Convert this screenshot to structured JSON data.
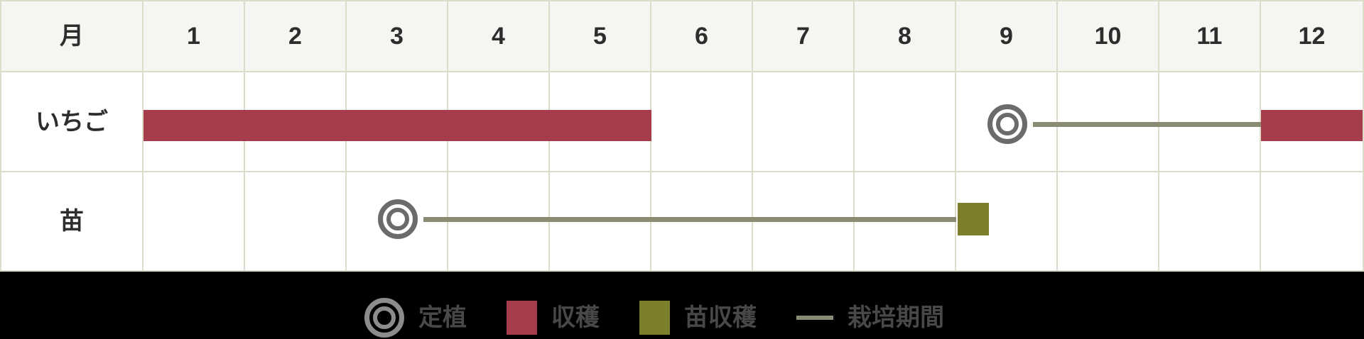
{
  "colors": {
    "harvest": "#a63c4c",
    "seedling_harvest": "#7c7e29",
    "period_line": "#8b8b73",
    "mark_circle": "#6b6b6b",
    "legend_circle": "#8c8c8c",
    "grid_line": "#dcdcca",
    "header_bg": "#f5f5f2",
    "footer_bg": "#000000",
    "header_text": "#2d2d2d",
    "legend_text": "#484848"
  },
  "chart_data": {
    "type": "gantt",
    "axis_corner_label": "月",
    "months": [
      "1",
      "2",
      "3",
      "4",
      "5",
      "6",
      "7",
      "8",
      "9",
      "10",
      "11",
      "12"
    ],
    "legend_position": "bottom",
    "rows": [
      {
        "label": "いちご",
        "marks": [
          {
            "kind": "bar",
            "color": "harvest",
            "from_month": 1,
            "to_month": 5,
            "meaning": "収穫"
          },
          {
            "kind": "circle",
            "month": 9,
            "meaning": "定植"
          },
          {
            "kind": "line",
            "from_month": 9,
            "to_month": 12,
            "meaning": "栽培期間"
          },
          {
            "kind": "bar",
            "color": "harvest",
            "from_month": 12,
            "to_month": 12,
            "meaning": "収穫"
          }
        ]
      },
      {
        "label": "苗",
        "marks": [
          {
            "kind": "circle",
            "month": 3,
            "meaning": "定植"
          },
          {
            "kind": "line",
            "from_month": 3,
            "to_month": 9,
            "meaning": "栽培期間"
          },
          {
            "kind": "square",
            "color": "seedling_harvest",
            "month": 9,
            "meaning": "苗収穫"
          }
        ]
      }
    ]
  },
  "legend": {
    "items": [
      {
        "icon": "planting-circle-icon",
        "label": "定植"
      },
      {
        "icon": "harvest-swatch",
        "label": "収穫"
      },
      {
        "icon": "seedling-harvest-swatch",
        "label": "苗収穫"
      },
      {
        "icon": "cultivation-period-line",
        "label": "栽培期間"
      }
    ]
  }
}
